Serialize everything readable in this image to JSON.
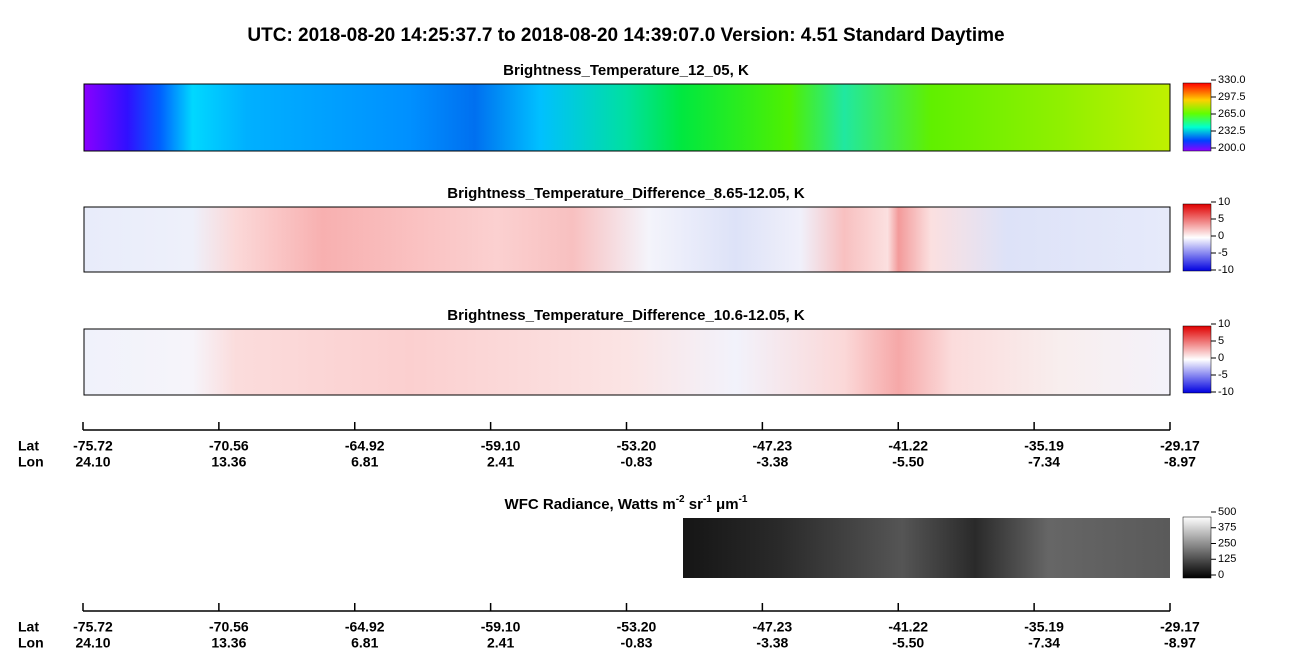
{
  "header": {
    "title": "UTC:  2018-08-20   14:25:37.7  to  2018-08-20   14:39:07.0    Version: 4.51  Standard Daytime"
  },
  "panels": [
    {
      "title": "Brightness_Temperature_12_05, K",
      "colorbar": [
        "330.0",
        "297.5",
        "265.0",
        "232.5",
        "200.0"
      ]
    },
    {
      "title": "Brightness_Temperature_Difference_8.65-12.05, K",
      "colorbar": [
        "10",
        "5",
        "0",
        "-5",
        "-10"
      ]
    },
    {
      "title": "Brightness_Temperature_Difference_10.6-12.05, K",
      "colorbar": [
        "10",
        "5",
        "0",
        "-5",
        "-10"
      ]
    }
  ],
  "wfc": {
    "title_parts": [
      "WFC Radiance, Watts m",
      "-2",
      " sr",
      "-1",
      " μm",
      "-1"
    ],
    "colorbar": [
      "500",
      "375",
      "250",
      "125",
      "0"
    ]
  },
  "axis": {
    "lat_label": "Lat",
    "lon_label": "Lon",
    "lat": [
      "-75.72",
      "-70.56",
      "-64.92",
      "-59.10",
      "-53.20",
      "-47.23",
      "-41.22",
      "-35.19",
      "-29.17"
    ],
    "lon": [
      "24.10",
      "13.36",
      "6.81",
      "2.41",
      "-0.83",
      "-3.38",
      "-5.50",
      "-7.34",
      "-8.97"
    ]
  }
}
